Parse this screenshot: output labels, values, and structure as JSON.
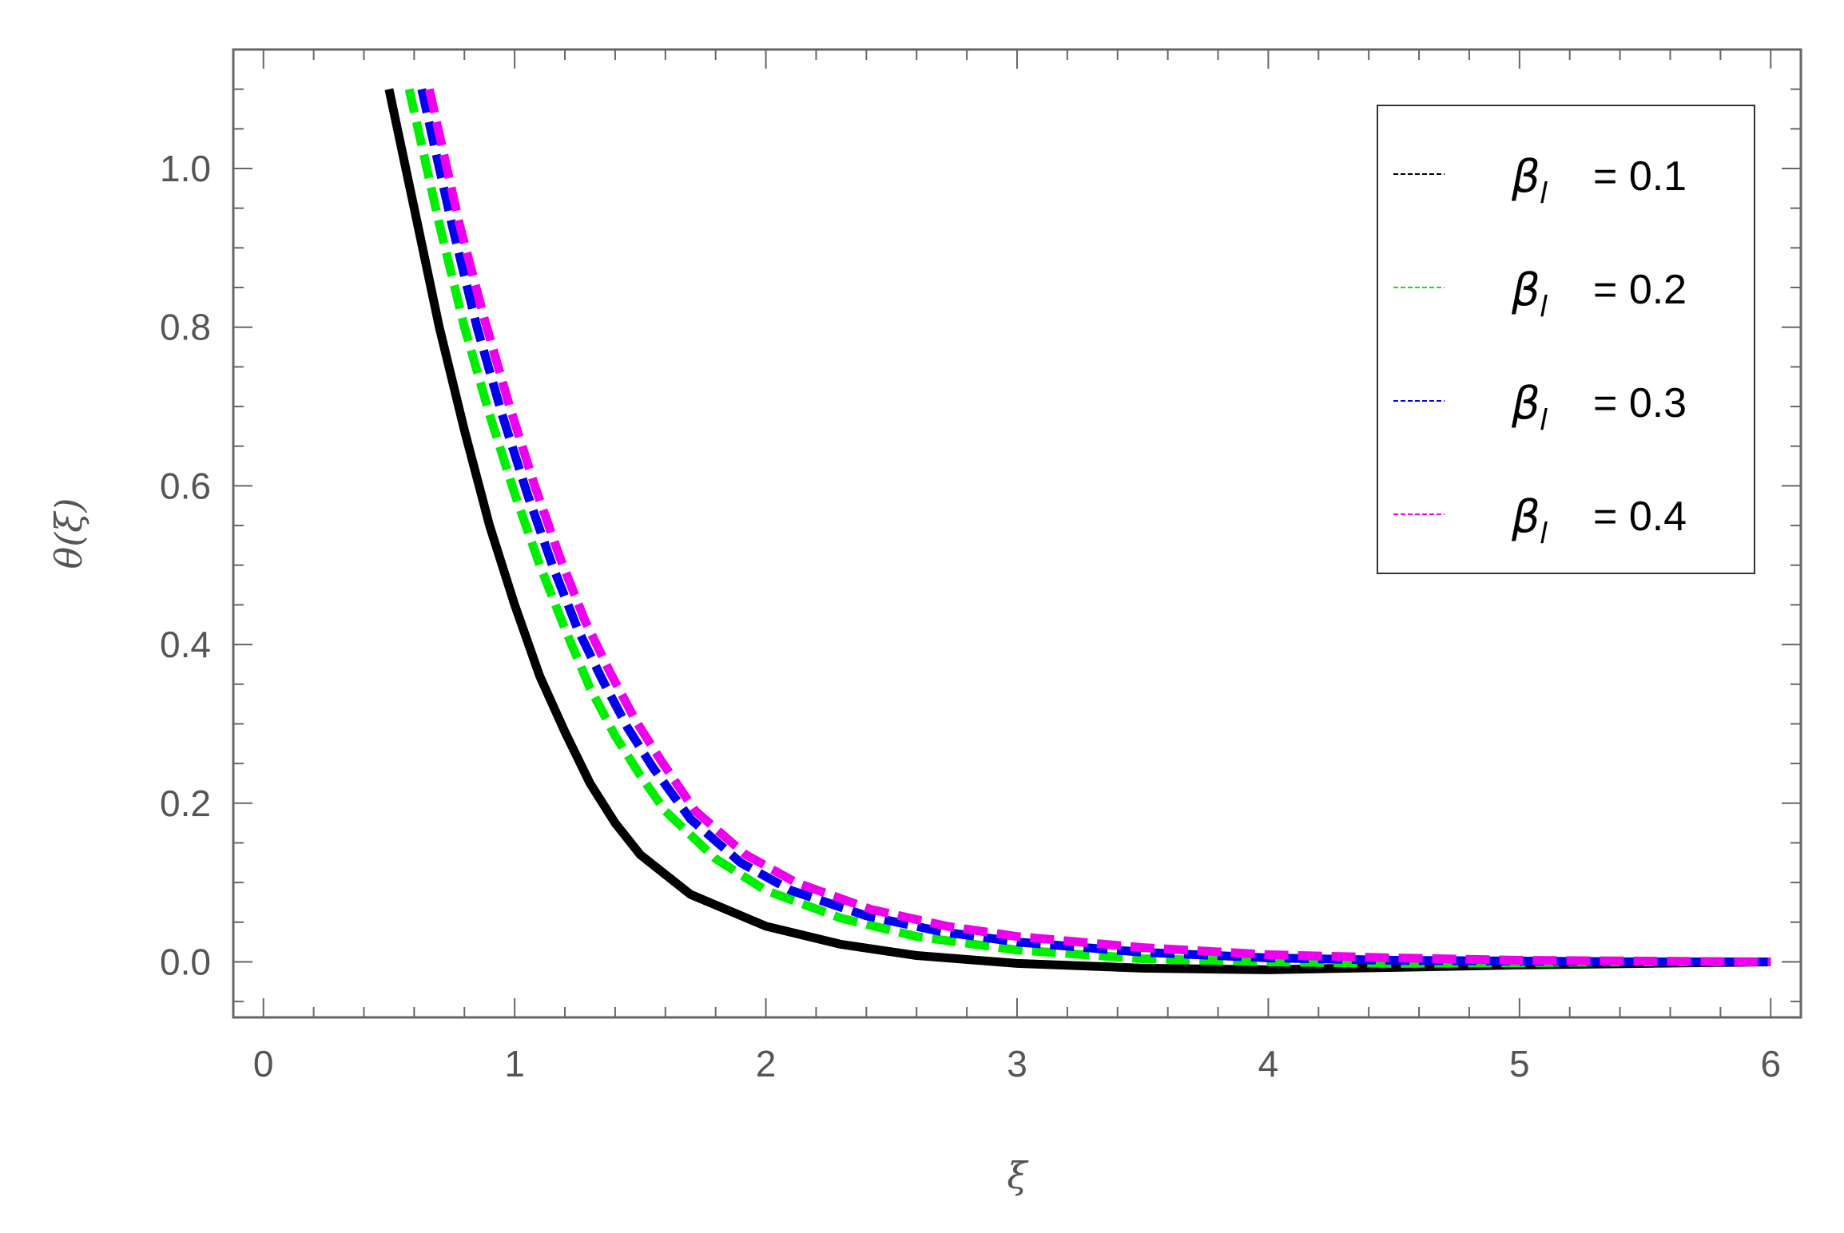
{
  "chart_data": {
    "type": "line",
    "xlabel": "ξ",
    "ylabel": "θ(ξ)",
    "xlim": [
      -0.12,
      6.12
    ],
    "ylim": [
      -0.07,
      1.15
    ],
    "xticks": [
      0,
      1,
      2,
      3,
      4,
      5,
      6
    ],
    "xtick_labels": [
      "0",
      "1",
      "2",
      "3",
      "4",
      "5",
      "6"
    ],
    "yticks": [
      0.0,
      0.2,
      0.4,
      0.6,
      0.8,
      1.0
    ],
    "ytick_labels": [
      "0.0",
      "0.2",
      "0.4",
      "0.6",
      "0.8",
      "1.0"
    ],
    "grid": false,
    "legend_position": "top-right",
    "series": [
      {
        "name": "β_l = 0.1",
        "legend_symbol": "β",
        "legend_sub": "l",
        "legend_value": "= 0.1",
        "color": "#000000",
        "style": "solid",
        "x": [
          0.5,
          0.6,
          0.7,
          0.8,
          0.9,
          1.0,
          1.1,
          1.2,
          1.3,
          1.4,
          1.5,
          1.7,
          2.0,
          2.3,
          2.6,
          3.0,
          3.5,
          4.0,
          4.5,
          5.0,
          5.5,
          6.0
        ],
        "y": [
          1.1,
          0.95,
          0.8,
          0.67,
          0.55,
          0.45,
          0.36,
          0.29,
          0.225,
          0.175,
          0.135,
          0.085,
          0.045,
          0.022,
          0.008,
          -0.002,
          -0.008,
          -0.01,
          -0.007,
          -0.004,
          -0.002,
          0.0
        ]
      },
      {
        "name": "β_l = 0.2",
        "legend_symbol": "β",
        "legend_sub": "l",
        "legend_value": "= 0.2",
        "color": "#00ee00",
        "style": "dashed",
        "x": [
          0.58,
          0.7,
          0.8,
          0.9,
          1.0,
          1.1,
          1.2,
          1.3,
          1.4,
          1.5,
          1.6,
          1.8,
          2.0,
          2.3,
          2.6,
          3.0,
          3.5,
          4.0,
          4.5,
          5.0,
          5.5,
          6.0
        ],
        "y": [
          1.1,
          0.93,
          0.8,
          0.69,
          0.59,
          0.5,
          0.42,
          0.345,
          0.285,
          0.235,
          0.19,
          0.13,
          0.09,
          0.055,
          0.032,
          0.015,
          0.004,
          0.0,
          -0.002,
          -0.001,
          0.0,
          0.0
        ]
      },
      {
        "name": "β_l = 0.3",
        "legend_symbol": "β",
        "legend_sub": "l",
        "legend_value": "= 0.3",
        "color": "#0000ee",
        "style": "dashed",
        "x": [
          0.63,
          0.75,
          0.85,
          0.95,
          1.05,
          1.15,
          1.25,
          1.35,
          1.45,
          1.55,
          1.7,
          1.9,
          2.1,
          2.4,
          2.7,
          3.0,
          3.5,
          4.0,
          4.5,
          5.0,
          5.5,
          6.0
        ],
        "y": [
          1.1,
          0.93,
          0.8,
          0.69,
          0.59,
          0.5,
          0.42,
          0.355,
          0.295,
          0.245,
          0.18,
          0.125,
          0.09,
          0.058,
          0.038,
          0.025,
          0.012,
          0.005,
          0.002,
          0.001,
          0.0,
          0.0
        ]
      },
      {
        "name": "β_l = 0.4",
        "legend_symbol": "β",
        "legend_sub": "l",
        "legend_value": "= 0.4",
        "color": "#ee00ee",
        "style": "dashed",
        "x": [
          0.66,
          0.78,
          0.88,
          0.98,
          1.08,
          1.18,
          1.28,
          1.38,
          1.48,
          1.58,
          1.72,
          1.92,
          2.12,
          2.42,
          2.72,
          3.0,
          3.5,
          4.0,
          4.5,
          5.0,
          5.5,
          6.0
        ],
        "y": [
          1.1,
          0.93,
          0.81,
          0.7,
          0.6,
          0.51,
          0.43,
          0.365,
          0.305,
          0.255,
          0.19,
          0.135,
          0.1,
          0.066,
          0.045,
          0.032,
          0.018,
          0.009,
          0.005,
          0.002,
          0.001,
          0.0
        ]
      }
    ]
  }
}
